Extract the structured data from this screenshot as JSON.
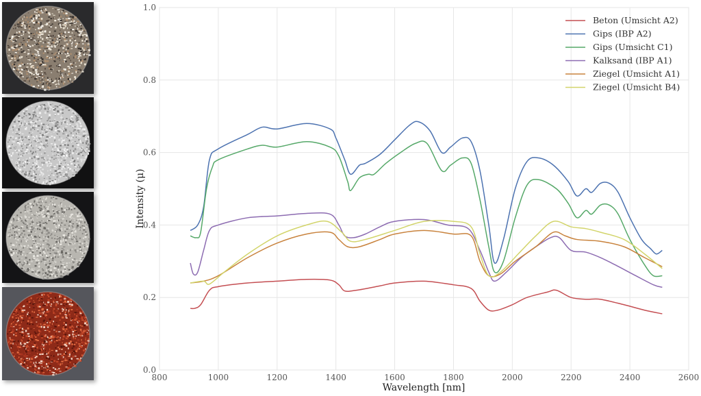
{
  "photos": [
    {
      "name": "Beton sample",
      "bg": "#2a2a2c",
      "base": "#8a7e70",
      "speckles": [
        "#e8e0d0",
        "#5a4e44",
        "#b09070",
        "#3a3430",
        "#f4f0e8"
      ]
    },
    {
      "name": "Gips sample",
      "bg": "#111112",
      "base": "#c8c8c8",
      "speckles": [
        "#f2f2f2",
        "#9a9a9a",
        "#e0e0e0",
        "#7a7a7a"
      ]
    },
    {
      "name": "Kalksand sample",
      "bg": "#141416",
      "base": "#b8b6b0",
      "speckles": [
        "#e8e6e0",
        "#8a8884",
        "#d0cec8",
        "#6a6864"
      ]
    },
    {
      "name": "Ziegel sample",
      "bg": "#55565c",
      "base": "#8e2a18",
      "speckles": [
        "#c84a2a",
        "#5a160c",
        "#e06a40",
        "#f0d0c0",
        "#a83420"
      ]
    }
  ],
  "chart_data": {
    "type": "line",
    "title": "",
    "xlabel": "Wavelength [nm]",
    "ylabel": "Intensity (μ)",
    "xlim": [
      800,
      2600
    ],
    "ylim": [
      0.0,
      1.0
    ],
    "xticks": [
      "800",
      "1000",
      "1200",
      "1400",
      "1600",
      "1800",
      "2000",
      "2200",
      "2400",
      "2600"
    ],
    "yticks": [
      "0.0",
      "0.2",
      "0.4",
      "0.6",
      "0.8",
      "1.0"
    ],
    "grid": true,
    "legend_position": "top-right",
    "series": [
      {
        "name": "Beton (Umsicht A2)",
        "color": "#c44e52",
        "points": [
          [
            905,
            0.17
          ],
          [
            920,
            0.17
          ],
          [
            940,
            0.18
          ],
          [
            970,
            0.22
          ],
          [
            1000,
            0.23
          ],
          [
            1100,
            0.24
          ],
          [
            1200,
            0.245
          ],
          [
            1300,
            0.25
          ],
          [
            1380,
            0.248
          ],
          [
            1410,
            0.235
          ],
          [
            1430,
            0.218
          ],
          [
            1470,
            0.22
          ],
          [
            1550,
            0.232
          ],
          [
            1600,
            0.24
          ],
          [
            1700,
            0.245
          ],
          [
            1800,
            0.235
          ],
          [
            1860,
            0.225
          ],
          [
            1890,
            0.19
          ],
          [
            1920,
            0.165
          ],
          [
            1950,
            0.165
          ],
          [
            2000,
            0.18
          ],
          [
            2050,
            0.2
          ],
          [
            2120,
            0.215
          ],
          [
            2150,
            0.22
          ],
          [
            2200,
            0.2
          ],
          [
            2250,
            0.195
          ],
          [
            2300,
            0.195
          ],
          [
            2380,
            0.18
          ],
          [
            2450,
            0.165
          ],
          [
            2510,
            0.155
          ]
        ]
      },
      {
        "name": "Gips (IBP A2)",
        "color": "#4c72b0",
        "points": [
          [
            905,
            0.385
          ],
          [
            930,
            0.4
          ],
          [
            950,
            0.45
          ],
          [
            970,
            0.58
          ],
          [
            1000,
            0.61
          ],
          [
            1100,
            0.65
          ],
          [
            1150,
            0.67
          ],
          [
            1200,
            0.665
          ],
          [
            1300,
            0.68
          ],
          [
            1380,
            0.665
          ],
          [
            1400,
            0.64
          ],
          [
            1430,
            0.58
          ],
          [
            1450,
            0.54
          ],
          [
            1480,
            0.565
          ],
          [
            1500,
            0.57
          ],
          [
            1550,
            0.595
          ],
          [
            1600,
            0.635
          ],
          [
            1650,
            0.675
          ],
          [
            1680,
            0.685
          ],
          [
            1720,
            0.66
          ],
          [
            1760,
            0.6
          ],
          [
            1790,
            0.615
          ],
          [
            1830,
            0.64
          ],
          [
            1860,
            0.63
          ],
          [
            1890,
            0.55
          ],
          [
            1920,
            0.4
          ],
          [
            1940,
            0.295
          ],
          [
            1970,
            0.36
          ],
          [
            2010,
            0.5
          ],
          [
            2050,
            0.575
          ],
          [
            2090,
            0.585
          ],
          [
            2140,
            0.565
          ],
          [
            2190,
            0.52
          ],
          [
            2220,
            0.48
          ],
          [
            2250,
            0.5
          ],
          [
            2270,
            0.49
          ],
          [
            2300,
            0.515
          ],
          [
            2330,
            0.515
          ],
          [
            2360,
            0.49
          ],
          [
            2400,
            0.42
          ],
          [
            2440,
            0.36
          ],
          [
            2470,
            0.335
          ],
          [
            2490,
            0.32
          ],
          [
            2510,
            0.33
          ]
        ]
      },
      {
        "name": "Gips (Umsicht C1)",
        "color": "#55a868",
        "points": [
          [
            905,
            0.37
          ],
          [
            925,
            0.365
          ],
          [
            940,
            0.38
          ],
          [
            960,
            0.5
          ],
          [
            980,
            0.56
          ],
          [
            1000,
            0.58
          ],
          [
            1100,
            0.61
          ],
          [
            1150,
            0.62
          ],
          [
            1200,
            0.615
          ],
          [
            1300,
            0.63
          ],
          [
            1380,
            0.615
          ],
          [
            1410,
            0.59
          ],
          [
            1440,
            0.52
          ],
          [
            1450,
            0.495
          ],
          [
            1480,
            0.53
          ],
          [
            1510,
            0.54
          ],
          [
            1530,
            0.54
          ],
          [
            1570,
            0.57
          ],
          [
            1620,
            0.6
          ],
          [
            1670,
            0.625
          ],
          [
            1710,
            0.625
          ],
          [
            1760,
            0.55
          ],
          [
            1790,
            0.565
          ],
          [
            1830,
            0.585
          ],
          [
            1860,
            0.57
          ],
          [
            1890,
            0.47
          ],
          [
            1920,
            0.34
          ],
          [
            1940,
            0.27
          ],
          [
            1970,
            0.3
          ],
          [
            2010,
            0.42
          ],
          [
            2050,
            0.51
          ],
          [
            2090,
            0.525
          ],
          [
            2150,
            0.5
          ],
          [
            2190,
            0.46
          ],
          [
            2220,
            0.42
          ],
          [
            2250,
            0.44
          ],
          [
            2270,
            0.43
          ],
          [
            2300,
            0.455
          ],
          [
            2330,
            0.455
          ],
          [
            2360,
            0.43
          ],
          [
            2400,
            0.36
          ],
          [
            2450,
            0.29
          ],
          [
            2480,
            0.26
          ],
          [
            2510,
            0.26
          ]
        ]
      },
      {
        "name": "Kalksand (IBP A1)",
        "color": "#8c6bb1",
        "points": [
          [
            905,
            0.295
          ],
          [
            915,
            0.265
          ],
          [
            930,
            0.27
          ],
          [
            950,
            0.33
          ],
          [
            970,
            0.385
          ],
          [
            1000,
            0.4
          ],
          [
            1100,
            0.42
          ],
          [
            1200,
            0.425
          ],
          [
            1300,
            0.432
          ],
          [
            1380,
            0.43
          ],
          [
            1410,
            0.4
          ],
          [
            1430,
            0.37
          ],
          [
            1460,
            0.365
          ],
          [
            1500,
            0.375
          ],
          [
            1550,
            0.395
          ],
          [
            1600,
            0.41
          ],
          [
            1700,
            0.415
          ],
          [
            1780,
            0.4
          ],
          [
            1850,
            0.39
          ],
          [
            1890,
            0.33
          ],
          [
            1920,
            0.27
          ],
          [
            1940,
            0.245
          ],
          [
            1980,
            0.27
          ],
          [
            2030,
            0.31
          ],
          [
            2080,
            0.34
          ],
          [
            2130,
            0.365
          ],
          [
            2160,
            0.365
          ],
          [
            2200,
            0.33
          ],
          [
            2250,
            0.325
          ],
          [
            2300,
            0.31
          ],
          [
            2350,
            0.29
          ],
          [
            2420,
            0.26
          ],
          [
            2480,
            0.235
          ],
          [
            2510,
            0.228
          ]
        ]
      },
      {
        "name": "Ziegel (Umsicht A1)",
        "color": "#c8823c",
        "points": [
          [
            905,
            0.24
          ],
          [
            950,
            0.245
          ],
          [
            1000,
            0.26
          ],
          [
            1100,
            0.31
          ],
          [
            1200,
            0.35
          ],
          [
            1300,
            0.375
          ],
          [
            1380,
            0.38
          ],
          [
            1410,
            0.36
          ],
          [
            1440,
            0.34
          ],
          [
            1480,
            0.34
          ],
          [
            1550,
            0.36
          ],
          [
            1600,
            0.375
          ],
          [
            1700,
            0.385
          ],
          [
            1800,
            0.375
          ],
          [
            1860,
            0.37
          ],
          [
            1890,
            0.3
          ],
          [
            1920,
            0.26
          ],
          [
            1960,
            0.265
          ],
          [
            2010,
            0.3
          ],
          [
            2080,
            0.34
          ],
          [
            2140,
            0.38
          ],
          [
            2180,
            0.37
          ],
          [
            2220,
            0.36
          ],
          [
            2300,
            0.355
          ],
          [
            2380,
            0.34
          ],
          [
            2450,
            0.31
          ],
          [
            2510,
            0.285
          ]
        ]
      },
      {
        "name": "Ziegel (Umsicht B4)",
        "color": "#d2d46a",
        "points": [
          [
            905,
            0.24
          ],
          [
            950,
            0.245
          ],
          [
            970,
            0.237
          ],
          [
            1020,
            0.27
          ],
          [
            1100,
            0.32
          ],
          [
            1200,
            0.37
          ],
          [
            1300,
            0.4
          ],
          [
            1370,
            0.41
          ],
          [
            1420,
            0.38
          ],
          [
            1450,
            0.355
          ],
          [
            1500,
            0.36
          ],
          [
            1600,
            0.385
          ],
          [
            1700,
            0.41
          ],
          [
            1800,
            0.41
          ],
          [
            1860,
            0.395
          ],
          [
            1890,
            0.32
          ],
          [
            1920,
            0.26
          ],
          [
            1960,
            0.27
          ],
          [
            2020,
            0.32
          ],
          [
            2080,
            0.37
          ],
          [
            2140,
            0.41
          ],
          [
            2200,
            0.395
          ],
          [
            2250,
            0.39
          ],
          [
            2300,
            0.38
          ],
          [
            2380,
            0.36
          ],
          [
            2450,
            0.32
          ],
          [
            2510,
            0.28
          ]
        ]
      }
    ]
  }
}
